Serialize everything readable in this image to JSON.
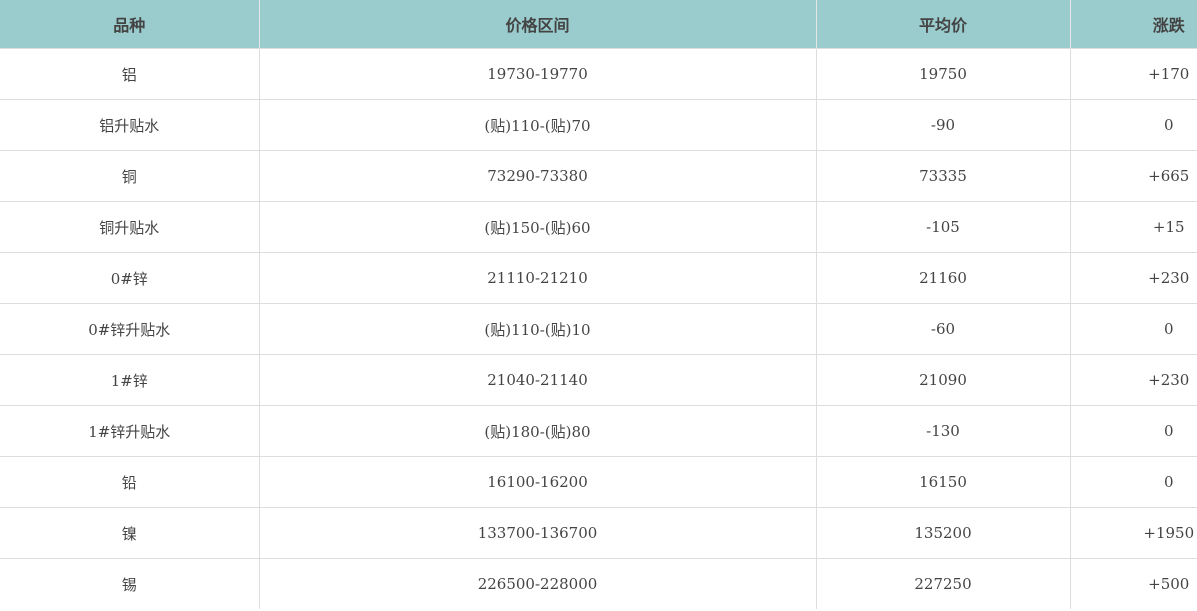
{
  "table": {
    "headers": [
      "品种",
      "价格区间",
      "平均价",
      "涨跌"
    ],
    "rows": [
      [
        "铝",
        "19730-19770",
        "19750",
        "+170"
      ],
      [
        "铝升贴水",
        "(贴)110-(贴)70",
        "-90",
        "0"
      ],
      [
        "铜",
        "73290-73380",
        "73335",
        "+665"
      ],
      [
        "铜升贴水",
        "(贴)150-(贴)60",
        "-105",
        "+15"
      ],
      [
        "0#锌",
        "21110-21210",
        "21160",
        "+230"
      ],
      [
        "0#锌升贴水",
        "(贴)110-(贴)10",
        "-60",
        "0"
      ],
      [
        "1#锌",
        "21040-21140",
        "21090",
        "+230"
      ],
      [
        "1#锌升贴水",
        "(贴)180-(贴)80",
        "-130",
        "0"
      ],
      [
        "铅",
        "16100-16200",
        "16150",
        "0"
      ],
      [
        "镍",
        "133700-136700",
        "135200",
        "+1950"
      ],
      [
        "锡",
        "226500-228000",
        "227250",
        "+500"
      ]
    ]
  },
  "colors": {
    "header_bg": "#9acccd",
    "border": "#dddddd",
    "text": "#444444"
  }
}
